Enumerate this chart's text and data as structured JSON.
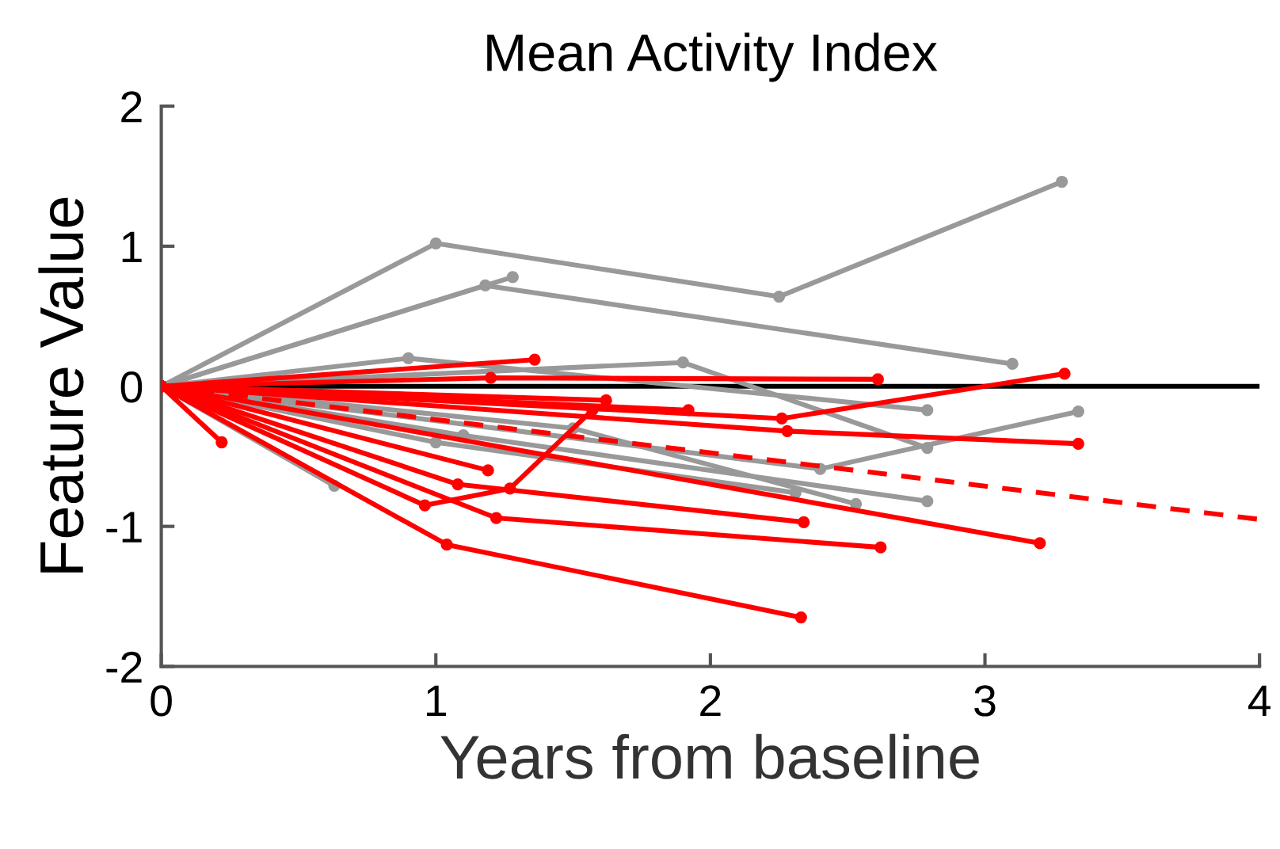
{
  "chart_data": {
    "type": "line",
    "title": "Mean Activity Index",
    "xlabel": "Years from baseline",
    "ylabel": "Feature Value",
    "xlim": [
      0,
      4
    ],
    "xticks": [
      0,
      1,
      2,
      3,
      4
    ],
    "ylim": [
      -2,
      2
    ],
    "yticks": [
      -2,
      -1,
      0,
      1,
      2
    ],
    "grid": false,
    "legend": false,
    "marker": "circle",
    "line_style": "solid",
    "ref_lines": [
      {
        "axis": "y",
        "value": 0,
        "color": "#000000"
      }
    ],
    "series": [
      {
        "color": "#999999",
        "x": [
          0,
          1.0,
          2.25,
          3.28
        ],
        "values": [
          0,
          1.02,
          0.64,
          1.46
        ]
      },
      {
        "color": "#999999",
        "x": [
          0,
          1.18,
          3.1
        ],
        "values": [
          0,
          0.72,
          0.16
        ]
      },
      {
        "color": "#999999",
        "x": [
          0,
          1.28
        ],
        "values": [
          0,
          0.78
        ]
      },
      {
        "color": "#999999",
        "x": [
          0,
          0.9,
          2.79
        ],
        "values": [
          0,
          0.2,
          -0.17
        ]
      },
      {
        "color": "#999999",
        "x": [
          0,
          1.9,
          2.79
        ],
        "values": [
          0,
          0.17,
          -0.44
        ]
      },
      {
        "color": "#999999",
        "x": [
          0,
          2.4,
          3.34
        ],
        "values": [
          0,
          -0.59,
          -0.18
        ]
      },
      {
        "color": "#999999",
        "x": [
          0,
          1.5,
          2.53
        ],
        "values": [
          0,
          -0.3,
          -0.84
        ]
      },
      {
        "color": "#999999",
        "x": [
          0,
          1.1,
          2.79
        ],
        "values": [
          0,
          -0.35,
          -0.82
        ]
      },
      {
        "color": "#999999",
        "x": [
          0,
          1.0,
          2.31
        ],
        "values": [
          0,
          -0.4,
          -0.76
        ]
      },
      {
        "color": "#999999",
        "x": [
          0,
          0.63
        ],
        "values": [
          0,
          -0.71
        ]
      },
      {
        "color": "#ff0000",
        "x": [
          0,
          0.22
        ],
        "values": [
          0,
          -0.4
        ]
      },
      {
        "color": "#ff0000",
        "x": [
          0,
          1.36
        ],
        "values": [
          0,
          0.19
        ]
      },
      {
        "color": "#ff0000",
        "x": [
          0,
          1.2,
          2.61
        ],
        "values": [
          0,
          0.06,
          0.05
        ]
      },
      {
        "color": "#ff0000",
        "x": [
          0,
          2.26,
          3.29
        ],
        "values": [
          0,
          -0.23,
          0.09
        ]
      },
      {
        "color": "#ff0000",
        "x": [
          0,
          2.28,
          3.34
        ],
        "values": [
          0,
          -0.32,
          -0.41
        ]
      },
      {
        "color": "#ff0000",
        "x": [
          0,
          0.96,
          1.27,
          1.57
        ],
        "values": [
          0,
          -0.85,
          -0.73,
          -0.17
        ]
      },
      {
        "color": "#ff0000",
        "x": [
          0,
          1.22,
          2.62
        ],
        "values": [
          0,
          -0.94,
          -1.15
        ]
      },
      {
        "color": "#ff0000",
        "x": [
          0,
          1.08,
          2.34
        ],
        "values": [
          0,
          -0.7,
          -0.97
        ]
      },
      {
        "color": "#ff0000",
        "x": [
          0,
          1.04,
          2.33
        ],
        "values": [
          0,
          -1.13,
          -1.65
        ]
      },
      {
        "color": "#ff0000",
        "x": [
          0,
          3.2
        ],
        "values": [
          0,
          -1.12
        ]
      },
      {
        "color": "#ff0000",
        "x": [
          0,
          1.62
        ],
        "values": [
          0,
          -0.1
        ]
      },
      {
        "color": "#ff0000",
        "x": [
          0,
          1.92
        ],
        "values": [
          0,
          -0.17
        ]
      },
      {
        "color": "#ff0000",
        "x": [
          0,
          1.19
        ],
        "values": [
          0,
          -0.6
        ]
      },
      {
        "color": "#ff0000",
        "type": "line",
        "marker": "none",
        "line_style": "dashed",
        "x": [
          0,
          4
        ],
        "values": [
          0,
          -0.95
        ]
      }
    ]
  }
}
